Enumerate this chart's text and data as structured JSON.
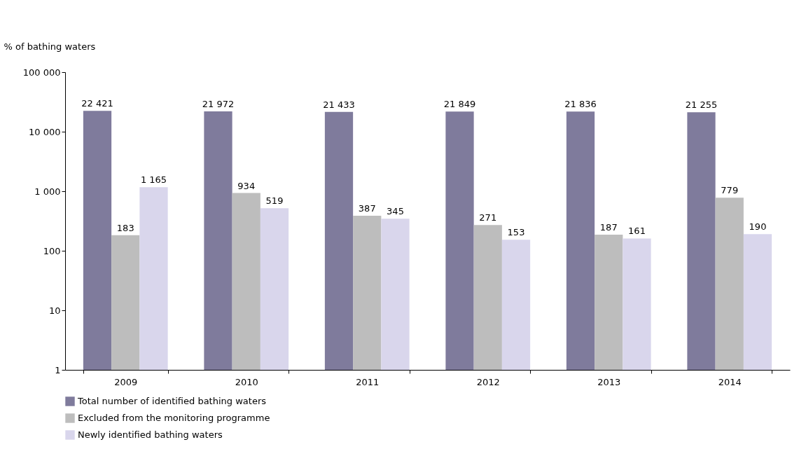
{
  "chart_data": {
    "type": "bar",
    "ylabel": "% of bathing waters",
    "categories": [
      "2009",
      "2010",
      "2011",
      "2012",
      "2013",
      "2014"
    ],
    "series": [
      {
        "name": "Total number of identified bathing waters",
        "color": "#7f7b9c",
        "values": [
          22421,
          21972,
          21433,
          21849,
          21836,
          21255
        ],
        "value_labels": [
          "22 421",
          "21 972",
          "21 433",
          "21 849",
          "21 836",
          "21 255"
        ]
      },
      {
        "name": "Excluded from the monitoring programme",
        "color": "#bdbdbd",
        "values": [
          183,
          934,
          387,
          271,
          187,
          779
        ],
        "value_labels": [
          "183",
          "934",
          "387",
          "271",
          "187",
          "779"
        ]
      },
      {
        "name": "Newly identified bathing waters",
        "color": "#d9d6ec",
        "values": [
          1165,
          519,
          345,
          153,
          161,
          190
        ],
        "value_labels": [
          "1 165",
          "519",
          "345",
          "153",
          "161",
          "190"
        ]
      }
    ],
    "log": true,
    "ylim": [
      1,
      100000
    ],
    "yticks": [
      1,
      10,
      100,
      {
        "value": 1000,
        "label": "1 000"
      },
      {
        "value": 10000,
        "label": "10 000"
      },
      {
        "value": 100000,
        "label": "100 000"
      }
    ],
    "grid": false,
    "legend": "bottom left"
  }
}
